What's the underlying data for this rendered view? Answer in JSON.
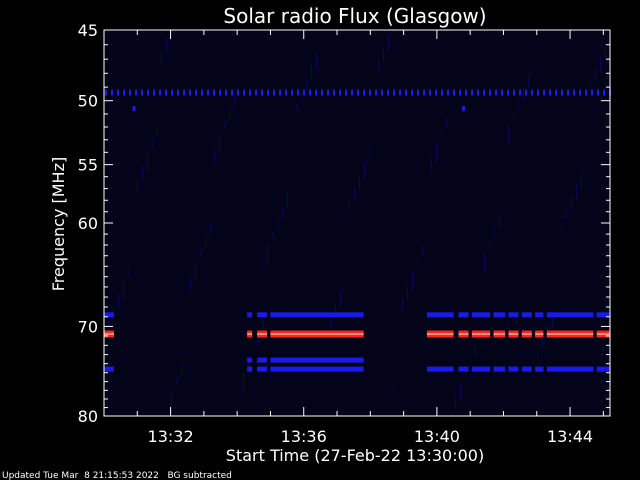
{
  "chart_data": {
    "type": "heatmap",
    "title": "Solar radio Flux (Glasgow)",
    "ylabel": "Frequency [MHz]",
    "xlabel": "Start Time (27-Feb-22 13:30:00)",
    "footnote": "Updated Tue Mar  8 21:15:53 2022   BG subtracted",
    "y_scale": "log",
    "ylim": [
      45,
      80
    ],
    "y_ticks": [
      45,
      50,
      55,
      60,
      70,
      80
    ],
    "xlim_minutes": [
      0,
      15.2
    ],
    "x_ticks": [
      {
        "minute": 2,
        "label": "13:32"
      },
      {
        "minute": 6,
        "label": "13:36"
      },
      {
        "minute": 10,
        "label": "13:40"
      },
      {
        "minute": 14,
        "label": "13:44"
      }
    ],
    "colors": {
      "background": "#000000",
      "axes": "#ffffff",
      "low": "#0a0a60",
      "blue": "#1a1aee",
      "red": "#ff2222",
      "hot": "#ffaa88"
    },
    "bands": [
      {
        "freq_mhz": 49.4,
        "intensity": "blue",
        "dotted": true,
        "segments": [
          [
            0,
            15.2
          ]
        ]
      },
      {
        "freq_mhz": 68.8,
        "intensity": "blue",
        "dotted": false,
        "segments": [
          [
            0,
            0.3
          ],
          [
            4.3,
            7.8
          ],
          [
            9.7,
            15.2
          ]
        ]
      },
      {
        "freq_mhz": 70.8,
        "intensity": "red",
        "dotted": false,
        "segments": [
          [
            0,
            0.3
          ],
          [
            4.3,
            7.8
          ],
          [
            9.7,
            15.2
          ]
        ]
      },
      {
        "freq_mhz": 73.6,
        "intensity": "blue",
        "dotted": false,
        "segments": [
          [
            4.3,
            7.8
          ]
        ]
      },
      {
        "freq_mhz": 74.6,
        "intensity": "blue",
        "dotted": false,
        "segments": [
          [
            0,
            0.3
          ],
          [
            4.3,
            7.8
          ],
          [
            9.7,
            15.2
          ]
        ]
      }
    ],
    "gaps": [
      [
        4.45,
        4.6
      ],
      [
        4.9,
        5.0
      ],
      [
        10.5,
        10.65
      ],
      [
        10.95,
        11.05
      ],
      [
        11.6,
        11.7
      ],
      [
        12.05,
        12.15
      ],
      [
        12.45,
        12.55
      ],
      [
        12.85,
        12.95
      ],
      [
        13.2,
        13.3
      ],
      [
        14.7,
        14.8
      ]
    ],
    "spots": [
      {
        "minute": 0.9,
        "freq_mhz": 50.6
      },
      {
        "minute": 10.8,
        "freq_mhz": 50.6
      }
    ]
  }
}
